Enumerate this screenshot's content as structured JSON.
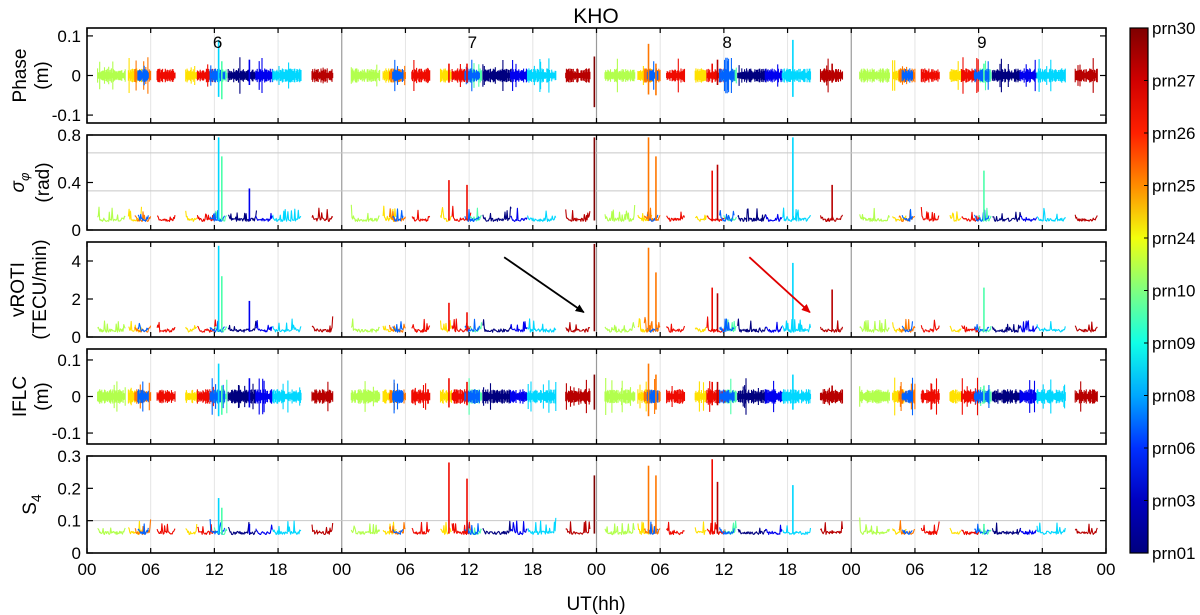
{
  "chart_data": {
    "type": "line",
    "title": "KHO",
    "xlabel": "UT(hh)",
    "x_tick_labels": [
      "00",
      "06",
      "12",
      "18",
      "00",
      "06",
      "12",
      "18",
      "00",
      "06",
      "12",
      "18",
      "00",
      "06",
      "12",
      "18",
      "00"
    ],
    "xlim": [
      0,
      96
    ],
    "days": [
      "6",
      "7",
      "8",
      "9"
    ],
    "colors": {
      "prn01": "#00007f",
      "prn03": "#0000ef",
      "prn06": "#0063ff",
      "prn08": "#00d7ff",
      "prn09": "#4dffaa",
      "prn10": "#b2ff4d",
      "prn24": "#ffe100",
      "prn25": "#ff7700",
      "prn26": "#ef0a00",
      "prn27": "#b80000",
      "prn30": "#7f0000"
    },
    "colorbar": {
      "labels": [
        "prn30",
        "prn27",
        "prn26",
        "prn25",
        "prn24",
        "prn10",
        "prn09",
        "prn08",
        "prn06",
        "prn03",
        "prn01"
      ],
      "stops": [
        "#7f0000",
        "#d00000",
        "#ff2000",
        "#ff8c00",
        "#f2ff0d",
        "#7fff80",
        "#10ffe7",
        "#00a8ff",
        "#0030ff",
        "#0000c0",
        "#00007f"
      ]
    },
    "panels": [
      {
        "key": "phase",
        "ylabel": [
          "Phase",
          "(m)"
        ],
        "ylim": [
          -0.12,
          0.12
        ],
        "yticks": [
          0.1,
          0,
          -0.1
        ],
        "ytick_labels": [
          "0.1",
          "0",
          "-0.1"
        ],
        "signal": "centered",
        "amp": 0.018
      },
      {
        "key": "sigma",
        "ylabel": [
          "σφ",
          "(rad)"
        ],
        "ylim": [
          0,
          0.8
        ],
        "yticks": [
          0,
          0.4,
          0.8
        ],
        "ytick_labels": [
          "0",
          "0.4",
          "0.8"
        ],
        "hgrid": [
          0.33,
          0.65
        ],
        "signal": "positive",
        "base": 0.08
      },
      {
        "key": "vroti",
        "ylabel": [
          "vROTI",
          "(TECU/min)"
        ],
        "ylim": [
          0,
          5
        ],
        "yticks": [
          0,
          2,
          4
        ],
        "ytick_labels": [
          "0",
          "2",
          "4"
        ],
        "signal": "positive",
        "base": 0.3
      },
      {
        "key": "iflc",
        "ylabel": [
          "IFLC",
          "(m)"
        ],
        "ylim": [
          -0.13,
          0.13
        ],
        "yticks": [
          0.1,
          0,
          -0.1
        ],
        "ytick_labels": [
          "0.1",
          "0",
          "-0.1"
        ],
        "signal": "centered",
        "amp": 0.02
      },
      {
        "key": "s4",
        "ylabel": [
          "S4"
        ],
        "ylim": [
          0,
          0.3
        ],
        "yticks": [
          0,
          0.1,
          0.2,
          0.3
        ],
        "ytick_labels": [
          "0",
          "0.1",
          "0.2",
          "0.3"
        ],
        "hgrid": [
          0.1
        ],
        "signal": "positive",
        "base": 0.06
      }
    ],
    "arcs": [
      {
        "prn": "prn10",
        "start": 1.0,
        "end": 3.6
      },
      {
        "prn": "prn24",
        "start": 3.9,
        "end": 5.2
      },
      {
        "prn": "prn25",
        "start": 4.5,
        "end": 6.0
      },
      {
        "prn": "prn06",
        "start": 4.8,
        "end": 5.8
      },
      {
        "prn": "prn26",
        "start": 6.6,
        "end": 8.3
      },
      {
        "prn": "prn24",
        "start": 9.3,
        "end": 10.4
      },
      {
        "prn": "prn26",
        "start": 10.4,
        "end": 12.2
      },
      {
        "prn": "prn09",
        "start": 12.0,
        "end": 13.2
      },
      {
        "prn": "prn06",
        "start": 11.6,
        "end": 13.0
      },
      {
        "prn": "prn01",
        "start": 13.3,
        "end": 16.0
      },
      {
        "prn": "prn03",
        "start": 15.9,
        "end": 17.5
      },
      {
        "prn": "prn08",
        "start": 17.5,
        "end": 20.2
      },
      {
        "prn": "prn27",
        "start": 21.2,
        "end": 23.2
      },
      {
        "prn": "prn10",
        "start": 24.9,
        "end": 27.6
      },
      {
        "prn": "prn24",
        "start": 27.9,
        "end": 29.2
      },
      {
        "prn": "prn25",
        "start": 28.5,
        "end": 30.0
      },
      {
        "prn": "prn06",
        "start": 28.8,
        "end": 29.8
      },
      {
        "prn": "prn26",
        "start": 30.6,
        "end": 32.3
      },
      {
        "prn": "prn24",
        "start": 33.3,
        "end": 34.4
      },
      {
        "prn": "prn26",
        "start": 34.4,
        "end": 36.2
      },
      {
        "prn": "prn09",
        "start": 36.0,
        "end": 37.2
      },
      {
        "prn": "prn06",
        "start": 35.6,
        "end": 37.0
      },
      {
        "prn": "prn01",
        "start": 37.3,
        "end": 40.0
      },
      {
        "prn": "prn03",
        "start": 39.9,
        "end": 41.5
      },
      {
        "prn": "prn08",
        "start": 41.5,
        "end": 44.2
      },
      {
        "prn": "prn27",
        "start": 45.1,
        "end": 47.4
      },
      {
        "prn": "prn10",
        "start": 48.8,
        "end": 51.6
      },
      {
        "prn": "prn24",
        "start": 51.9,
        "end": 53.2
      },
      {
        "prn": "prn25",
        "start": 52.5,
        "end": 54.0
      },
      {
        "prn": "prn06",
        "start": 52.8,
        "end": 53.8
      },
      {
        "prn": "prn26",
        "start": 54.6,
        "end": 56.3
      },
      {
        "prn": "prn24",
        "start": 57.3,
        "end": 58.4
      },
      {
        "prn": "prn26",
        "start": 58.4,
        "end": 60.2
      },
      {
        "prn": "prn09",
        "start": 60.0,
        "end": 61.2
      },
      {
        "prn": "prn06",
        "start": 59.6,
        "end": 61.0
      },
      {
        "prn": "prn01",
        "start": 61.3,
        "end": 64.0
      },
      {
        "prn": "prn03",
        "start": 63.9,
        "end": 65.5
      },
      {
        "prn": "prn08",
        "start": 65.5,
        "end": 68.2
      },
      {
        "prn": "prn27",
        "start": 69.1,
        "end": 71.2
      },
      {
        "prn": "prn10",
        "start": 72.8,
        "end": 75.6
      },
      {
        "prn": "prn24",
        "start": 75.9,
        "end": 77.2
      },
      {
        "prn": "prn25",
        "start": 76.5,
        "end": 78.0
      },
      {
        "prn": "prn06",
        "start": 76.8,
        "end": 77.8
      },
      {
        "prn": "prn26",
        "start": 78.6,
        "end": 80.3
      },
      {
        "prn": "prn24",
        "start": 81.3,
        "end": 82.4
      },
      {
        "prn": "prn26",
        "start": 82.4,
        "end": 84.2
      },
      {
        "prn": "prn09",
        "start": 84.0,
        "end": 85.2
      },
      {
        "prn": "prn06",
        "start": 83.6,
        "end": 85.0
      },
      {
        "prn": "prn01",
        "start": 85.3,
        "end": 88.0
      },
      {
        "prn": "prn03",
        "start": 87.9,
        "end": 89.5
      },
      {
        "prn": "prn08",
        "start": 89.5,
        "end": 92.2
      },
      {
        "prn": "prn27",
        "start": 93.1,
        "end": 95.2
      }
    ],
    "spikes": [
      {
        "x": 12.4,
        "prn": "prn08",
        "phase": 0.09,
        "sigma": 0.78,
        "vroti": 4.8,
        "iflc": 0.09,
        "s4": 0.17
      },
      {
        "x": 12.7,
        "prn": "prn09",
        "phase": -0.06,
        "sigma": 0.62,
        "vroti": 3.2,
        "iflc": -0.05,
        "s4": 0.14
      },
      {
        "x": 15.3,
        "prn": "prn03",
        "phase": 0.04,
        "sigma": 0.35,
        "vroti": 1.9,
        "iflc": 0.05,
        "s4": 0.09
      },
      {
        "x": 34.1,
        "prn": "prn26",
        "phase": 0.03,
        "sigma": 0.42,
        "vroti": 1.8,
        "iflc": 0.05,
        "s4": 0.28
      },
      {
        "x": 35.8,
        "prn": "prn26",
        "phase": 0.03,
        "sigma": 0.38,
        "vroti": 1.3,
        "iflc": 0.04,
        "s4": 0.23
      },
      {
        "x": 47.8,
        "prn": "prn30",
        "phase": -0.08,
        "sigma": 0.78,
        "vroti": 4.9,
        "iflc": 0.06,
        "s4": 0.24
      },
      {
        "x": 52.9,
        "prn": "prn25",
        "phase": 0.08,
        "sigma": 0.78,
        "vroti": 4.7,
        "iflc": 0.09,
        "s4": 0.27
      },
      {
        "x": 53.6,
        "prn": "prn25",
        "phase": -0.05,
        "sigma": 0.62,
        "vroti": 3.4,
        "iflc": 0.06,
        "s4": 0.24
      },
      {
        "x": 58.9,
        "prn": "prn26",
        "phase": 0.03,
        "sigma": 0.5,
        "vroti": 2.6,
        "iflc": 0.04,
        "s4": 0.29
      },
      {
        "x": 59.4,
        "prn": "prn27",
        "phase": 0.04,
        "sigma": 0.55,
        "vroti": 2.3,
        "iflc": 0.04,
        "s4": 0.22
      },
      {
        "x": 66.5,
        "prn": "prn08",
        "phase": 0.09,
        "sigma": 0.78,
        "vroti": 3.9,
        "iflc": 0.06,
        "s4": 0.21
      },
      {
        "x": 70.2,
        "prn": "prn27",
        "phase": 0.03,
        "sigma": 0.38,
        "vroti": 2.5,
        "iflc": 0.03,
        "s4": 0.07
      },
      {
        "x": 84.5,
        "prn": "prn09",
        "phase": 0.03,
        "sigma": 0.5,
        "vroti": 2.6,
        "iflc": 0.03,
        "s4": 0.09
      }
    ],
    "annotations": [
      {
        "panel": "vroti",
        "color": "#000000",
        "from": [
          39.3,
          4.2
        ],
        "to": [
          46.8,
          1.3
        ]
      },
      {
        "panel": "vroti",
        "color": "#e00000",
        "from": [
          62.4,
          4.2
        ],
        "to": [
          68.1,
          1.3
        ]
      }
    ]
  }
}
